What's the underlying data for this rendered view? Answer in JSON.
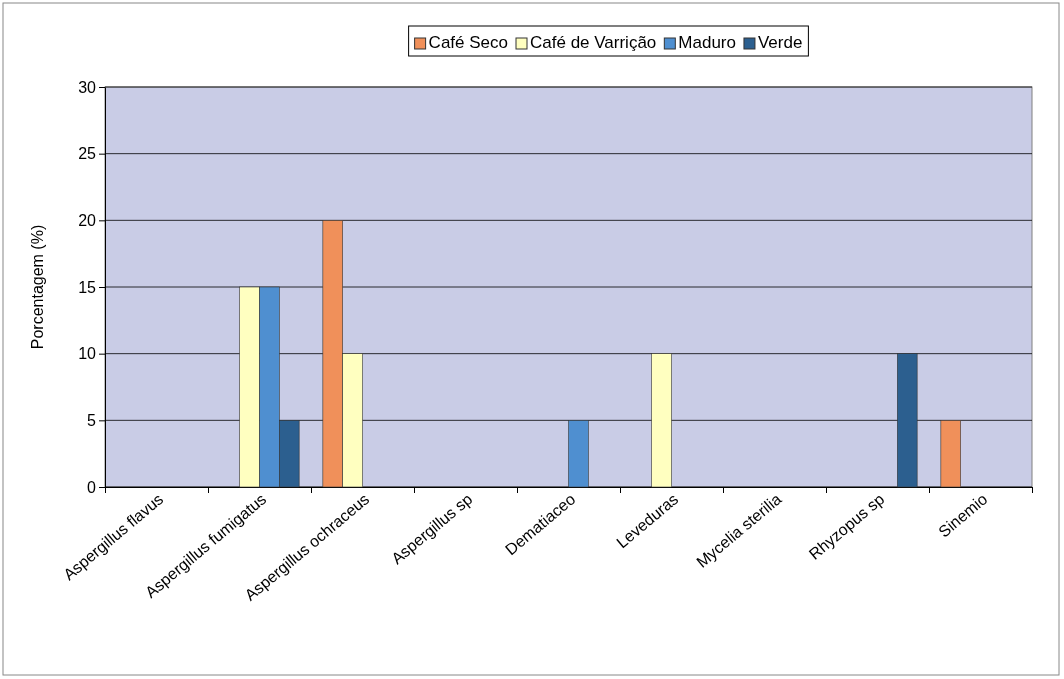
{
  "chart_data": {
    "type": "bar",
    "ylabel": "Porcentagem (%)",
    "categories": [
      "Aspergillus flavus",
      "Aspergillus fumigatus",
      "Aspergillus ochraceus",
      "Aspergillus sp",
      "Dematiaceo",
      "Leveduras",
      "Mycelia sterilia",
      "Rhyzopus sp",
      "Sinemio"
    ],
    "series": [
      {
        "name": "Café Seco",
        "color": "#f0905a",
        "values": [
          0,
          0,
          20,
          0,
          0,
          0,
          0,
          0,
          5
        ]
      },
      {
        "name": "Café de Varrição",
        "color": "#ffffc0",
        "values": [
          0,
          15,
          10,
          0,
          0,
          10,
          0,
          0,
          0
        ]
      },
      {
        "name": "Maduro",
        "color": "#4f8fd0",
        "values": [
          0,
          15,
          0,
          0,
          5,
          0,
          0,
          0,
          0
        ]
      },
      {
        "name": "Verde",
        "color": "#2c5f8f",
        "values": [
          0,
          5,
          0,
          0,
          0,
          0,
          0,
          10,
          0
        ]
      }
    ],
    "ylim": [
      0,
      30
    ],
    "yticks": [
      0,
      5,
      10,
      15,
      20,
      25,
      30
    ],
    "grid": "y",
    "legend": "top"
  }
}
